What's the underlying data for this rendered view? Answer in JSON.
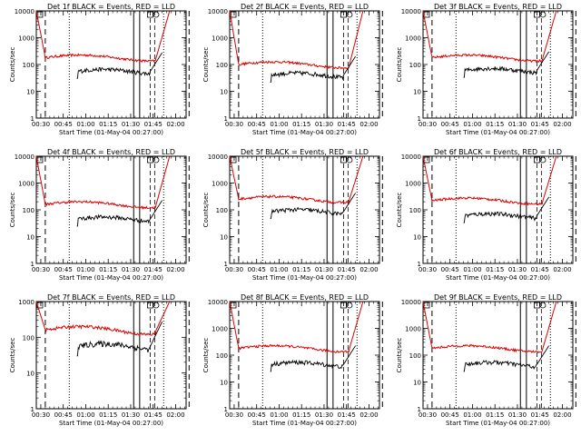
{
  "chart_data": [
    {
      "type": "line",
      "title": "Det 1f BLACK = Events, RED = LLD",
      "xlabel": "Start Time (01-May-04 00:27:00)",
      "ylabel": "Counts/sec",
      "x_ticks": [
        "00:30",
        "00:45",
        "01:00",
        "01:15",
        "01:30",
        "01:45",
        "02:00"
      ],
      "y_ticks": [
        "1",
        "10",
        "100",
        "1000",
        "10000"
      ],
      "yscale": "log",
      "xlim_minutes": [
        0,
        100
      ],
      "ylim": [
        1,
        10000
      ],
      "events_start": 27,
      "events_plateau": 55,
      "lld_plateau": 180,
      "vlines": {
        "dashed": [
          6,
          102
        ],
        "dotted": [
          22,
          85
        ],
        "solid": [
          65,
          69
        ],
        "attenuator": [
          76,
          79
        ]
      },
      "colors": {
        "events": "#000000",
        "lld": "#dd0000"
      },
      "series": [
        {
          "name": "Events",
          "color": "#000000"
        },
        {
          "name": "LLD",
          "color": "#dd0000"
        }
      ]
    },
    {
      "type": "line",
      "title": "Det 2f BLACK = Events, RED = LLD",
      "xlabel": "Start Time (01-May-04 00:27:00)",
      "ylabel": "Counts/sec",
      "x_ticks": [
        "00:30",
        "00:45",
        "01:00",
        "01:15",
        "01:30",
        "01:45",
        "02:00"
      ],
      "y_ticks": [
        "1",
        "10",
        "100",
        "1000",
        "10000"
      ],
      "yscale": "log",
      "ylim": [
        1,
        10000
      ],
      "events_plateau": 40,
      "lld_plateau": 100,
      "series": [
        {
          "name": "Events"
        },
        {
          "name": "LLD"
        }
      ]
    },
    {
      "type": "line",
      "title": "Det 3f BLACK = Events, RED = LLD",
      "xlabel": "Start Time (01-May-04 00:27:00)",
      "ylabel": "Counts/sec",
      "x_ticks": [
        "00:30",
        "00:45",
        "01:00",
        "01:15",
        "01:30",
        "01:45",
        "02:00"
      ],
      "y_ticks": [
        "1",
        "10",
        "100",
        "1000",
        "10000"
      ],
      "yscale": "log",
      "ylim": [
        1,
        10000
      ],
      "events_plateau": 60,
      "lld_plateau": 180,
      "series": [
        {
          "name": "Events"
        },
        {
          "name": "LLD"
        }
      ]
    },
    {
      "type": "line",
      "title": "Det 4f BLACK = Events, RED = LLD",
      "xlabel": "Start Time (01-May-04 00:27:00)",
      "ylabel": "Counts/sec",
      "x_ticks": [
        "00:30",
        "00:45",
        "01:00",
        "01:15",
        "01:30",
        "01:45",
        "02:00"
      ],
      "y_ticks": [
        "1",
        "10",
        "100",
        "1000",
        "10000"
      ],
      "yscale": "log",
      "ylim": [
        1,
        10000
      ],
      "events_plateau": 45,
      "lld_plateau": 160,
      "series": [
        {
          "name": "Events"
        },
        {
          "name": "LLD"
        }
      ]
    },
    {
      "type": "line",
      "title": "Det 5f BLACK = Events, RED = LLD",
      "xlabel": "Start Time (01-May-04 00:27:00)",
      "ylabel": "Counts/sec",
      "x_ticks": [
        "00:30",
        "00:45",
        "01:00",
        "01:15",
        "01:30",
        "01:45",
        "02:00"
      ],
      "y_ticks": [
        "1",
        "10",
        "100",
        "1000",
        "10000"
      ],
      "yscale": "log",
      "ylim": [
        1,
        10000
      ],
      "events_plateau": 85,
      "lld_plateau": 250,
      "series": [
        {
          "name": "Events"
        },
        {
          "name": "LLD"
        }
      ]
    },
    {
      "type": "line",
      "title": "Det 6f BLACK = Events, RED = LLD",
      "xlabel": "Start Time (01-May-04 00:27:00)",
      "ylabel": "Counts/sec",
      "x_ticks": [
        "00:30",
        "00:45",
        "01:00",
        "01:15",
        "01:30",
        "01:45",
        "02:00"
      ],
      "y_ticks": [
        "1",
        "10",
        "100",
        "1000",
        "10000"
      ],
      "yscale": "log",
      "ylim": [
        1,
        10000
      ],
      "events_plateau": 60,
      "lld_plateau": 220,
      "series": [
        {
          "name": "Events"
        },
        {
          "name": "LLD"
        }
      ]
    },
    {
      "type": "line",
      "title": "Det 7f BLACK = Events, RED = LLD",
      "xlabel": "Start Time (01-May-04 00:27:00)",
      "ylabel": "Counts/sec",
      "x_ticks": [
        "00:30",
        "00:45",
        "01:00",
        "01:15",
        "01:30",
        "01:45",
        "02:00"
      ],
      "y_ticks": [
        "1",
        "10",
        "100",
        "1000"
      ],
      "yscale": "log",
      "ylim": [
        1,
        1000
      ],
      "events_plateau": 55,
      "lld_plateau": 160,
      "series": [
        {
          "name": "Events"
        },
        {
          "name": "LLD"
        }
      ]
    },
    {
      "type": "line",
      "title": "Det 8f BLACK = Events, RED = LLD",
      "xlabel": "Start Time (01-May-04 00:27:00)",
      "ylabel": "Counts/sec",
      "x_ticks": [
        "00:30",
        "00:45",
        "01:00",
        "01:15",
        "01:30",
        "01:45",
        "02:00"
      ],
      "y_ticks": [
        "1",
        "10",
        "100",
        "1000",
        "10000"
      ],
      "yscale": "log",
      "ylim": [
        1,
        10000
      ],
      "events_plateau": 45,
      "lld_plateau": 180,
      "series": [
        {
          "name": "Events"
        },
        {
          "name": "LLD"
        }
      ]
    },
    {
      "type": "line",
      "title": "Det 9f BLACK = Events, RED = LLD",
      "xlabel": "Start Time (01-May-04 00:27:00)",
      "ylabel": "Counts/sec",
      "x_ticks": [
        "00:30",
        "00:45",
        "01:00",
        "01:15",
        "01:30",
        "01:45",
        "02:00"
      ],
      "y_ticks": [
        "1",
        "10",
        "100",
        "1000",
        "10000"
      ],
      "yscale": "log",
      "ylim": [
        1,
        10000
      ],
      "events_plateau": 45,
      "lld_plateau": 180,
      "series": [
        {
          "name": "Events"
        },
        {
          "name": "LLD"
        }
      ]
    }
  ]
}
